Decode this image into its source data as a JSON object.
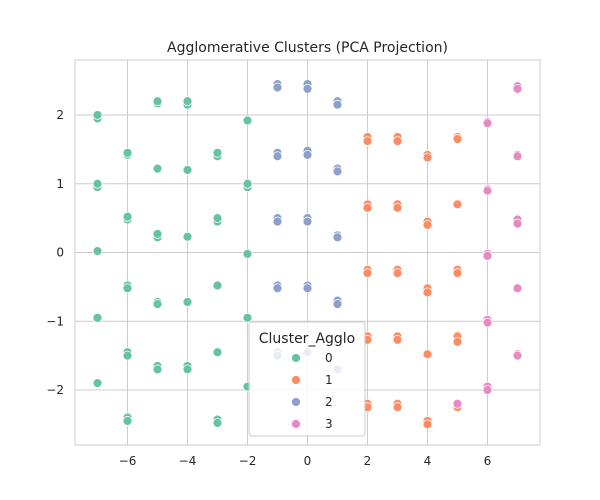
{
  "chart_data": {
    "type": "scatter",
    "title": "Agglomerative Clusters (PCA Projection)",
    "xlabel": "",
    "ylabel": "",
    "xlim": [
      -7.75,
      7.75
    ],
    "ylim": [
      -2.8,
      2.8
    ],
    "x_ticks": [
      -6,
      -4,
      -2,
      0,
      2,
      4,
      6
    ],
    "x_tick_labels": [
      "−6",
      "−4",
      "−2",
      "0",
      "2",
      "4",
      "6"
    ],
    "y_ticks": [
      -2,
      -1,
      0,
      1,
      2
    ],
    "y_tick_labels": [
      "−2",
      "−1",
      "0",
      "1",
      "2"
    ],
    "grid": true,
    "legend": {
      "title": "Cluster_Agglo",
      "placement": "lower-center",
      "entries": [
        "0",
        "1",
        "2",
        "3"
      ]
    },
    "series": [
      {
        "name": "0",
        "color": "#66c2a5",
        "points": [
          [
            -7,
            1.95
          ],
          [
            -7,
            2.0
          ],
          [
            -7,
            0.95
          ],
          [
            -7,
            1.0
          ],
          [
            -7,
            0.02
          ],
          [
            -7,
            -0.95
          ],
          [
            -7,
            -1.9
          ],
          [
            -6,
            1.42
          ],
          [
            -6,
            1.45
          ],
          [
            -6,
            0.48
          ],
          [
            -6,
            0.52
          ],
          [
            -6,
            -0.48
          ],
          [
            -6,
            -0.52
          ],
          [
            -6,
            -1.45
          ],
          [
            -6,
            -1.5
          ],
          [
            -6,
            -2.4
          ],
          [
            -6,
            -2.45
          ],
          [
            -5,
            2.17
          ],
          [
            -5,
            2.2
          ],
          [
            -5,
            1.22
          ],
          [
            -5,
            0.22
          ],
          [
            -5,
            0.27
          ],
          [
            -5,
            -0.72
          ],
          [
            -5,
            -0.75
          ],
          [
            -5,
            -1.65
          ],
          [
            -5,
            -1.7
          ],
          [
            -4,
            2.15
          ],
          [
            -4,
            2.2
          ],
          [
            -4,
            1.2
          ],
          [
            -4,
            0.23
          ],
          [
            -4,
            -0.72
          ],
          [
            -4,
            -1.65
          ],
          [
            -4,
            -1.7
          ],
          [
            -3,
            1.4
          ],
          [
            -3,
            1.45
          ],
          [
            -3,
            0.45
          ],
          [
            -3,
            0.5
          ],
          [
            -3,
            -0.48
          ],
          [
            -3,
            -1.45
          ],
          [
            -3,
            -2.43
          ],
          [
            -3,
            -2.48
          ],
          [
            -2,
            1.92
          ],
          [
            -2,
            0.95
          ],
          [
            -2,
            1.0
          ],
          [
            -2,
            -0.02
          ],
          [
            -2,
            -0.95
          ],
          [
            -2,
            -1.95
          ]
        ]
      },
      {
        "name": "1",
        "color": "#fc8d62",
        "points": [
          [
            2,
            1.68
          ],
          [
            2,
            1.62
          ],
          [
            2,
            0.7
          ],
          [
            2,
            0.65
          ],
          [
            2,
            -0.25
          ],
          [
            2,
            -0.3
          ],
          [
            2,
            -1.22
          ],
          [
            2,
            -1.27
          ],
          [
            2,
            -2.2
          ],
          [
            2,
            -2.25
          ],
          [
            3,
            1.68
          ],
          [
            3,
            1.62
          ],
          [
            3,
            0.7
          ],
          [
            3,
            0.65
          ],
          [
            3,
            -0.25
          ],
          [
            3,
            -0.3
          ],
          [
            3,
            -1.22
          ],
          [
            3,
            -1.27
          ],
          [
            3,
            -2.2
          ],
          [
            3,
            -2.25
          ],
          [
            4,
            1.42
          ],
          [
            4,
            1.38
          ],
          [
            4,
            0.45
          ],
          [
            4,
            0.4
          ],
          [
            4,
            -0.52
          ],
          [
            4,
            -0.58
          ],
          [
            4,
            -1.48
          ],
          [
            4,
            -2.45
          ],
          [
            4,
            -2.5
          ],
          [
            5,
            1.68
          ],
          [
            5,
            1.65
          ],
          [
            5,
            0.7
          ],
          [
            5,
            -0.25
          ],
          [
            5,
            -0.3
          ],
          [
            5,
            -1.22
          ],
          [
            5,
            -1.3
          ],
          [
            5,
            -2.25
          ]
        ]
      },
      {
        "name": "2",
        "color": "#8da0cb",
        "points": [
          [
            -1,
            2.45
          ],
          [
            -1,
            2.4
          ],
          [
            -1,
            1.45
          ],
          [
            -1,
            1.4
          ],
          [
            -1,
            0.5
          ],
          [
            -1,
            0.45
          ],
          [
            -1,
            -0.48
          ],
          [
            -1,
            -0.52
          ],
          [
            -1,
            -1.45
          ],
          [
            -1,
            -1.5
          ],
          [
            0,
            2.45
          ],
          [
            0,
            2.38
          ],
          [
            0,
            1.48
          ],
          [
            0,
            1.42
          ],
          [
            0,
            0.5
          ],
          [
            0,
            0.45
          ],
          [
            0,
            -0.48
          ],
          [
            0,
            -0.52
          ],
          [
            0,
            -1.45
          ],
          [
            1,
            2.2
          ],
          [
            1,
            2.15
          ],
          [
            1,
            1.22
          ],
          [
            1,
            1.18
          ],
          [
            1,
            0.25
          ],
          [
            1,
            0.22
          ],
          [
            1,
            -0.7
          ],
          [
            1,
            -0.75
          ],
          [
            1,
            -1.7
          ]
        ]
      },
      {
        "name": "3",
        "color": "#e78ac3",
        "points": [
          [
            5,
            -2.2
          ],
          [
            6,
            1.9
          ],
          [
            6,
            1.88
          ],
          [
            6,
            0.92
          ],
          [
            6,
            0.9
          ],
          [
            6,
            -0.02
          ],
          [
            6,
            -0.05
          ],
          [
            6,
            -0.98
          ],
          [
            6,
            -1.02
          ],
          [
            6,
            -1.95
          ],
          [
            6,
            -2.0
          ],
          [
            7,
            2.42
          ],
          [
            7,
            2.38
          ],
          [
            7,
            1.42
          ],
          [
            7,
            1.4
          ],
          [
            7,
            0.48
          ],
          [
            7,
            0.42
          ],
          [
            7,
            -0.52
          ],
          [
            7,
            -1.48
          ],
          [
            7,
            -1.5
          ]
        ]
      }
    ]
  }
}
